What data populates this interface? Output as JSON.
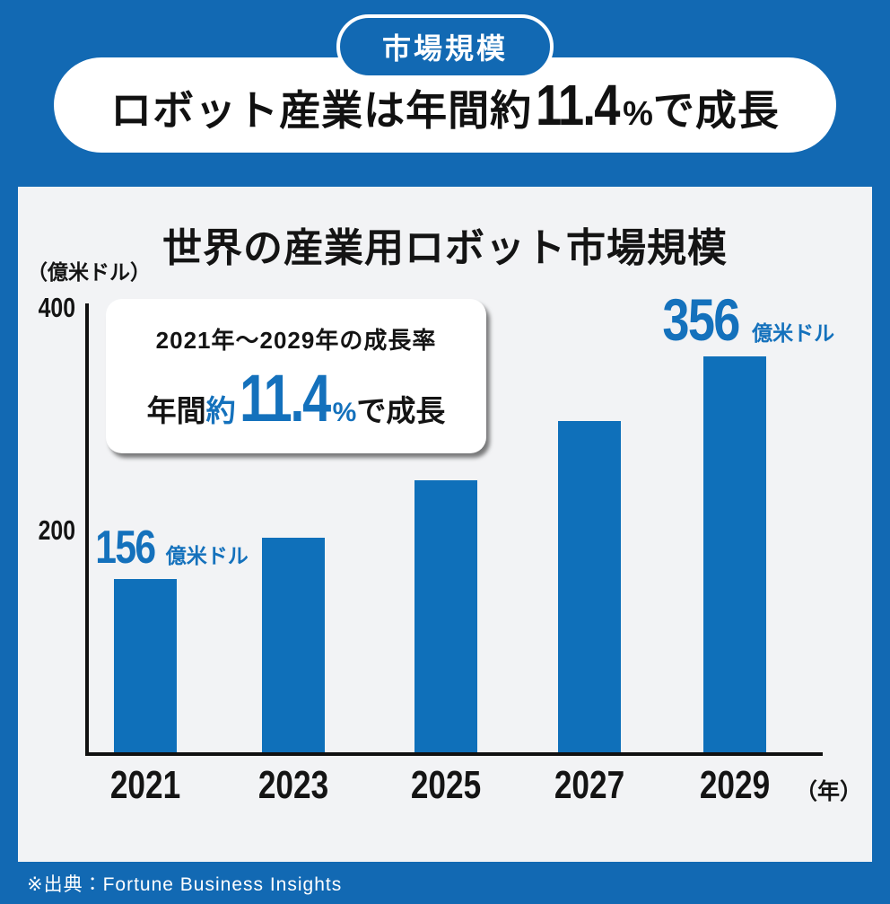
{
  "header": {
    "badge": "市場規模",
    "title": {
      "prefix": "ロボット産業は年間約",
      "rate": "11.4",
      "percent": "%",
      "suffix": "で成長"
    }
  },
  "chart": {
    "title": "世界の産業用ロボット市場規模",
    "y_axis_unit": "（億米ドル）",
    "x_axis_unit": "（年）",
    "callout": {
      "heading": "2021年〜2029年の成長率",
      "prefix": "年間",
      "approx": "約",
      "rate": "11.4",
      "percent": "%",
      "suffix": "で成長"
    },
    "bar_labels": {
      "first_value": "156",
      "first_unit": "億米ドル",
      "last_value": "356",
      "last_unit": "億米ドル"
    }
  },
  "chart_data": {
    "type": "bar",
    "categories": [
      "2021",
      "2023",
      "2025",
      "2027",
      "2029"
    ],
    "values": [
      156,
      193,
      245,
      298,
      356
    ],
    "value_labels": {
      "2021": "156億米ドル",
      "2029": "356億米ドル"
    },
    "title": "世界の産業用ロボット市場規模",
    "xlabel": "年",
    "ylabel": "億米ドル",
    "ylim": [
      0,
      400
    ],
    "y_ticks": [
      200,
      400
    ],
    "grid": false,
    "legend": false,
    "bar_color": "#0f70ba"
  },
  "footer": {
    "source": "※出典：Fortune Business Insights"
  },
  "colors": {
    "background_blue": "#1269b3",
    "bar_blue": "#0f70ba",
    "accent_blue": "#1471bc",
    "card_background": "#f2f3f5",
    "text": "#141414",
    "white": "#ffffff"
  }
}
